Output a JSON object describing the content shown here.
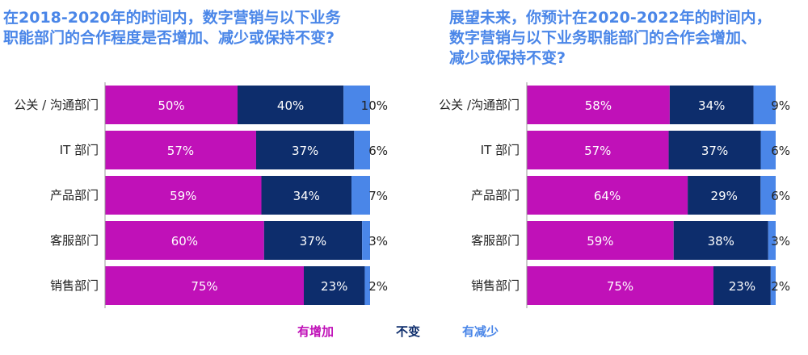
{
  "colors": {
    "increase": "#c011b8",
    "same": "#0d2d6c",
    "decrease": "#4a86e8",
    "title": "#4a86e8",
    "axis": "#999999"
  },
  "legend": {
    "increase": "有增加",
    "same": "不变",
    "decrease": "有减少"
  },
  "chart_data": [
    {
      "type": "bar",
      "stacked": true,
      "orientation": "horizontal",
      "title": "在2018-2020年的时间内，数字营销与以下业务\n职能部门的合作程度是否增加、减少或保持不变?",
      "categories": [
        "公关 / 沟通部门",
        "IT 部门",
        "产品部门",
        "客服部门",
        "销售部门"
      ],
      "series": [
        {
          "name": "有增加",
          "values": [
            50,
            57,
            59,
            60,
            75
          ],
          "labels": [
            "50%",
            "57%",
            "59%",
            "60%",
            "75%"
          ]
        },
        {
          "name": "不变",
          "values": [
            40,
            37,
            34,
            37,
            23
          ],
          "labels": [
            "40%",
            "37%",
            "34%",
            "37%",
            "23%"
          ]
        },
        {
          "name": "有减少",
          "values": [
            10,
            6,
            7,
            3,
            2
          ],
          "labels": [
            "10%",
            "6%",
            "7%",
            "3%",
            "2%"
          ]
        }
      ]
    },
    {
      "type": "bar",
      "stacked": true,
      "orientation": "horizontal",
      "title": "展望未来，你预计在2020-2022年的时间内，\n数字营销与以下业务职能部门的合作会增加、\n减少或保持不变?",
      "categories": [
        "公关 /沟通部门",
        "IT 部门",
        "产品部门",
        "客服部门",
        "销售部门"
      ],
      "series": [
        {
          "name": "有增加",
          "values": [
            58,
            57,
            64,
            59,
            75
          ],
          "labels": [
            "58%",
            "57%",
            "64%",
            "59%",
            "75%"
          ]
        },
        {
          "name": "不变",
          "values": [
            34,
            37,
            29,
            38,
            23
          ],
          "labels": [
            "34%",
            "37%",
            "29%",
            "38%",
            "23%"
          ]
        },
        {
          "name": "有减少",
          "values": [
            9,
            6,
            6,
            3,
            2
          ],
          "labels": [
            "9%",
            "6%",
            "6%",
            "3%",
            "2%"
          ]
        }
      ]
    }
  ]
}
